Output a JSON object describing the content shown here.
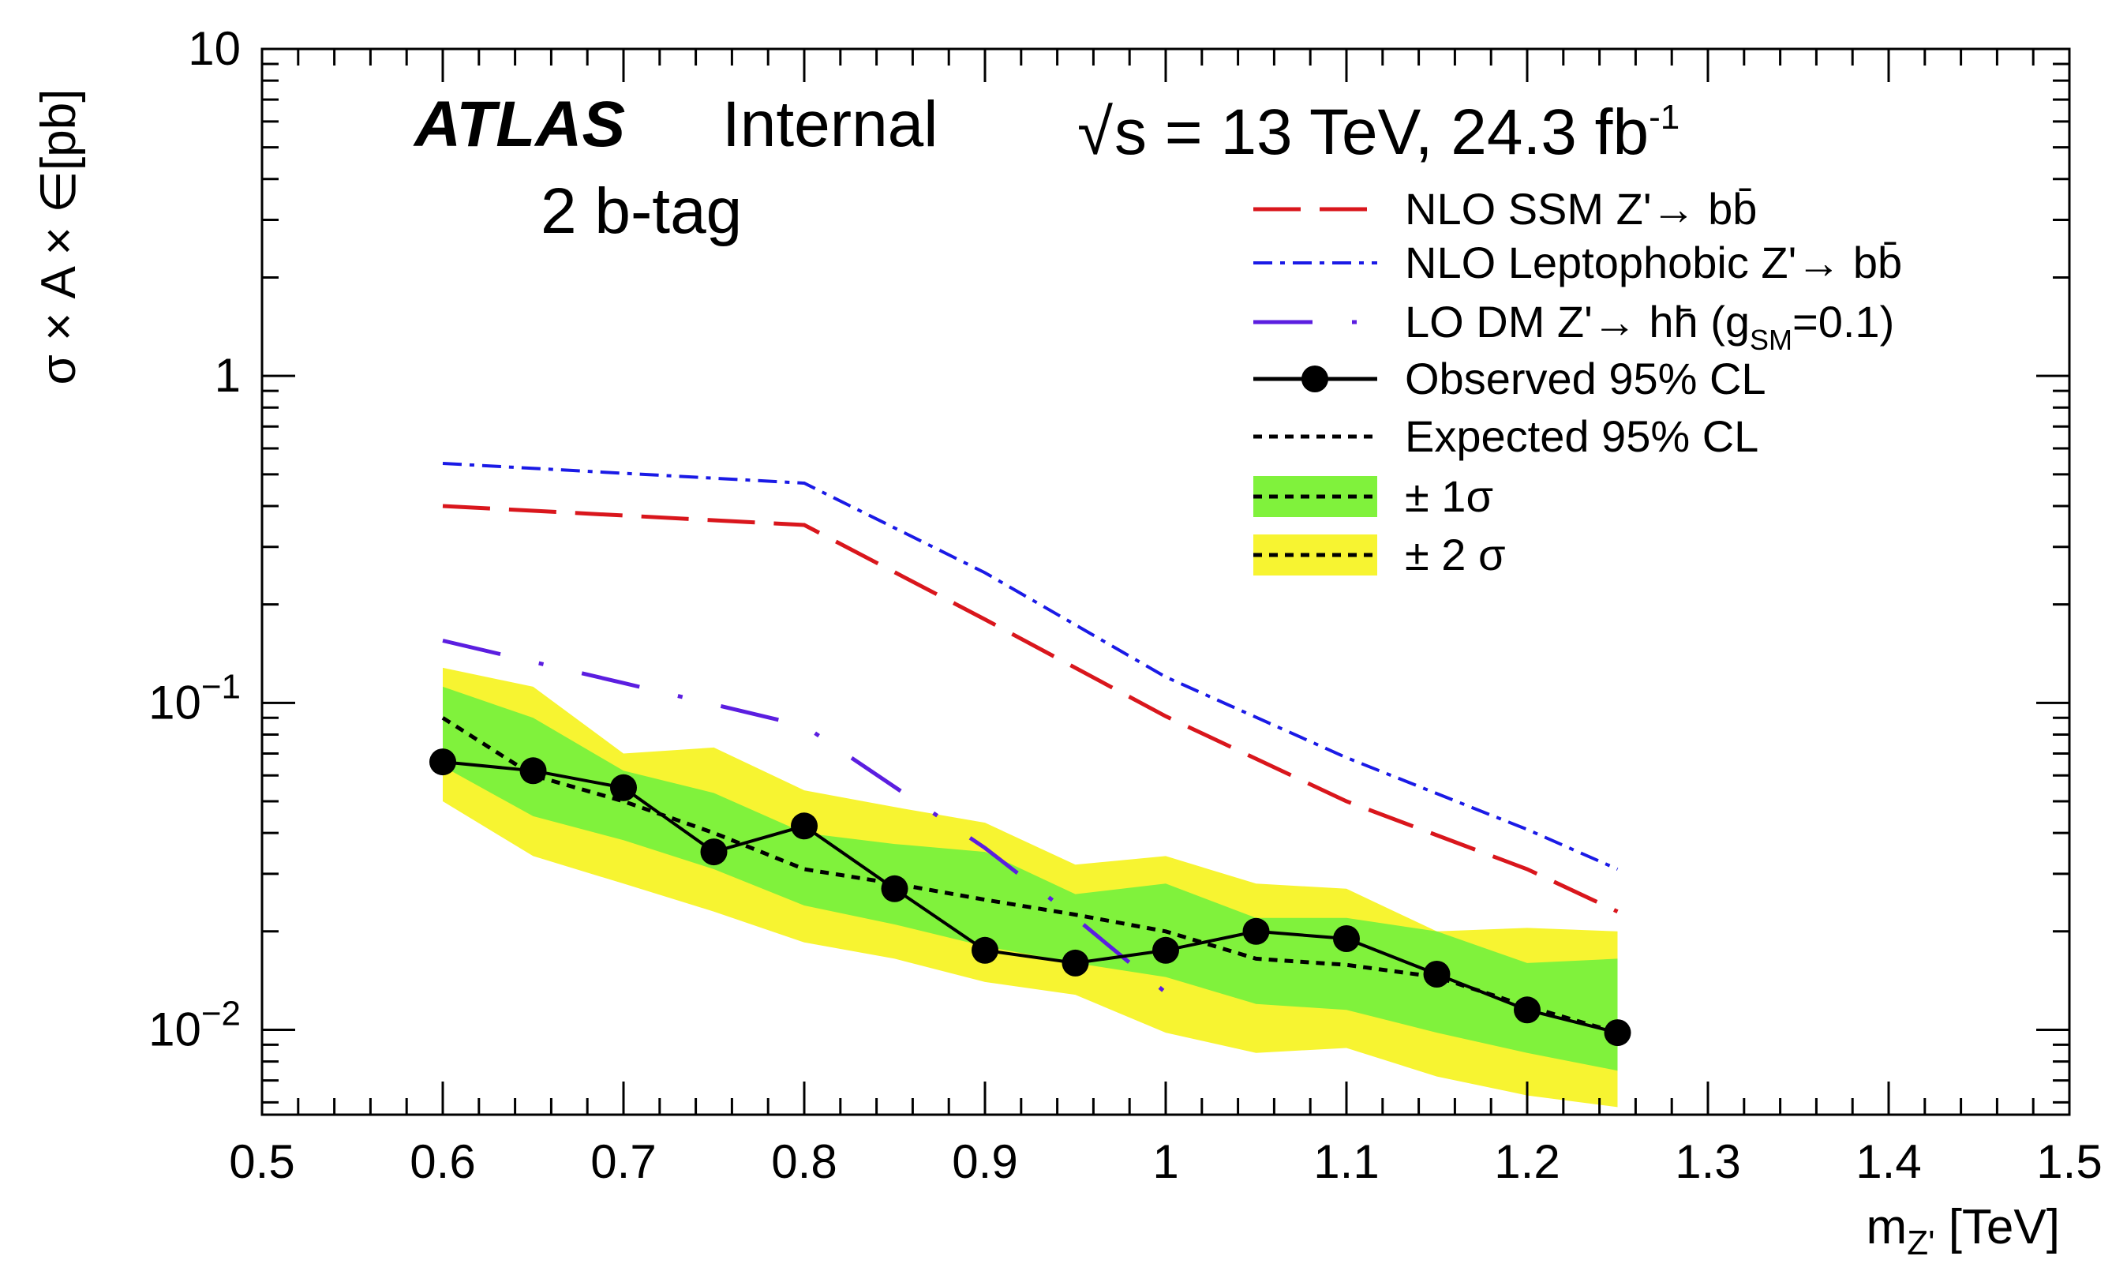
{
  "chart_data": {
    "type": "line",
    "x_scale": "linear",
    "y_scale": "log",
    "xlim": [
      0.5,
      1.5
    ],
    "ylim": [
      0.0055,
      10
    ],
    "x_ticks": [
      "0.5",
      "0.6",
      "0.7",
      "0.8",
      "0.9",
      "1",
      "1.1",
      "1.2",
      "1.3",
      "1.4",
      "1.5"
    ],
    "y_ticks": [
      {
        "value": 10,
        "base": "10",
        "exp": ""
      },
      {
        "value": 1,
        "base": "1",
        "exp": ""
      },
      {
        "value": 0.1,
        "base": "10",
        "exp": "−1"
      },
      {
        "value": 0.01,
        "base": "10",
        "exp": "−2"
      }
    ],
    "xlabel": {
      "main": "m",
      "sub": "Z'",
      "unit": " [TeV]"
    },
    "ylabel": "σ × A × ∈[pb]",
    "annotations": {
      "atlas": "ATLAS",
      "internal": "Internal",
      "selection": "2 b-tag",
      "sqrt": "√",
      "energy": "s = 13 TeV,  24.3 fb",
      "lumi_exp": "-1"
    },
    "legend": {
      "placement": "top-right",
      "ssm": "NLO SSM Z'→ bb̄",
      "leptophobic": "NLO Leptophobic Z'→ bb̄",
      "dm_main": "LO DM Z'→ hh̄ (g",
      "dm_sub": "SM",
      "dm_tail": "=0.1)",
      "observed": "Observed 95% CL",
      "expected": "Expected 95% CL",
      "one_sigma": "± 1σ",
      "two_sigma": "± 2 σ"
    },
    "colors": {
      "ssm": "#d9161c",
      "leptophobic": "#1a1ae6",
      "dm": "#5b1ee0",
      "one_sigma": "#80f23c",
      "two_sigma": "#f7f431",
      "observed": "#000000",
      "expected": "#000000"
    },
    "series": [
      {
        "name": "NLO SSM Z'→ bb̄",
        "key": "ssm",
        "x": [
          0.6,
          0.8,
          0.9,
          1.0,
          1.1,
          1.2,
          1.25
        ],
        "y": [
          0.4,
          0.35,
          0.18,
          0.091,
          0.05,
          0.031,
          0.023
        ]
      },
      {
        "name": "NLO Leptophobic Z'→ bb̄",
        "key": "leptophobic",
        "x": [
          0.6,
          0.8,
          0.9,
          1.0,
          1.1,
          1.2,
          1.25
        ],
        "y": [
          0.54,
          0.47,
          0.25,
          0.12,
          0.068,
          0.041,
          0.031
        ]
      },
      {
        "name": "LO DM Z'→ hh̄ (gSM=0.1)",
        "key": "dm",
        "x": [
          0.6,
          0.7,
          0.8,
          0.9,
          0.95,
          1.0
        ],
        "y": [
          0.155,
          0.115,
          0.085,
          0.036,
          0.022,
          0.013
        ]
      },
      {
        "name": "Observed 95% CL",
        "key": "observed",
        "x": [
          0.6,
          0.65,
          0.7,
          0.75,
          0.8,
          0.85,
          0.9,
          0.95,
          1.0,
          1.05,
          1.1,
          1.15,
          1.2,
          1.25
        ],
        "y": [
          0.066,
          0.062,
          0.055,
          0.035,
          0.042,
          0.027,
          0.0175,
          0.016,
          0.0175,
          0.02,
          0.019,
          0.0148,
          0.0115,
          0.0098
        ]
      },
      {
        "name": "Expected 95% CL",
        "key": "expected",
        "x": [
          0.6,
          0.65,
          0.7,
          0.75,
          0.8,
          0.85,
          0.9,
          0.95,
          1.0,
          1.05,
          1.1,
          1.15,
          1.2,
          1.25
        ],
        "y": [
          0.09,
          0.06,
          0.05,
          0.04,
          0.031,
          0.028,
          0.025,
          0.0225,
          0.02,
          0.0165,
          0.0158,
          0.0145,
          0.0118,
          0.0098
        ]
      }
    ],
    "bands": {
      "x": [
        0.6,
        0.65,
        0.7,
        0.75,
        0.8,
        0.85,
        0.9,
        0.95,
        1.0,
        1.05,
        1.1,
        1.15,
        1.2,
        1.25
      ],
      "one_sigma_lo": [
        0.064,
        0.045,
        0.038,
        0.031,
        0.024,
        0.021,
        0.018,
        0.016,
        0.0145,
        0.012,
        0.0115,
        0.0098,
        0.0085,
        0.0075
      ],
      "one_sigma_hi": [
        0.112,
        0.09,
        0.062,
        0.053,
        0.04,
        0.037,
        0.035,
        0.026,
        0.028,
        0.022,
        0.022,
        0.02,
        0.016,
        0.0165
      ],
      "two_sigma_lo": [
        0.05,
        0.034,
        0.028,
        0.023,
        0.0185,
        0.0165,
        0.014,
        0.0128,
        0.0098,
        0.0085,
        0.0088,
        0.0072,
        0.0063,
        0.0058
      ],
      "two_sigma_hi": [
        0.128,
        0.112,
        0.07,
        0.073,
        0.054,
        0.048,
        0.043,
        0.032,
        0.034,
        0.028,
        0.027,
        0.02,
        0.0205,
        0.02
      ]
    }
  }
}
